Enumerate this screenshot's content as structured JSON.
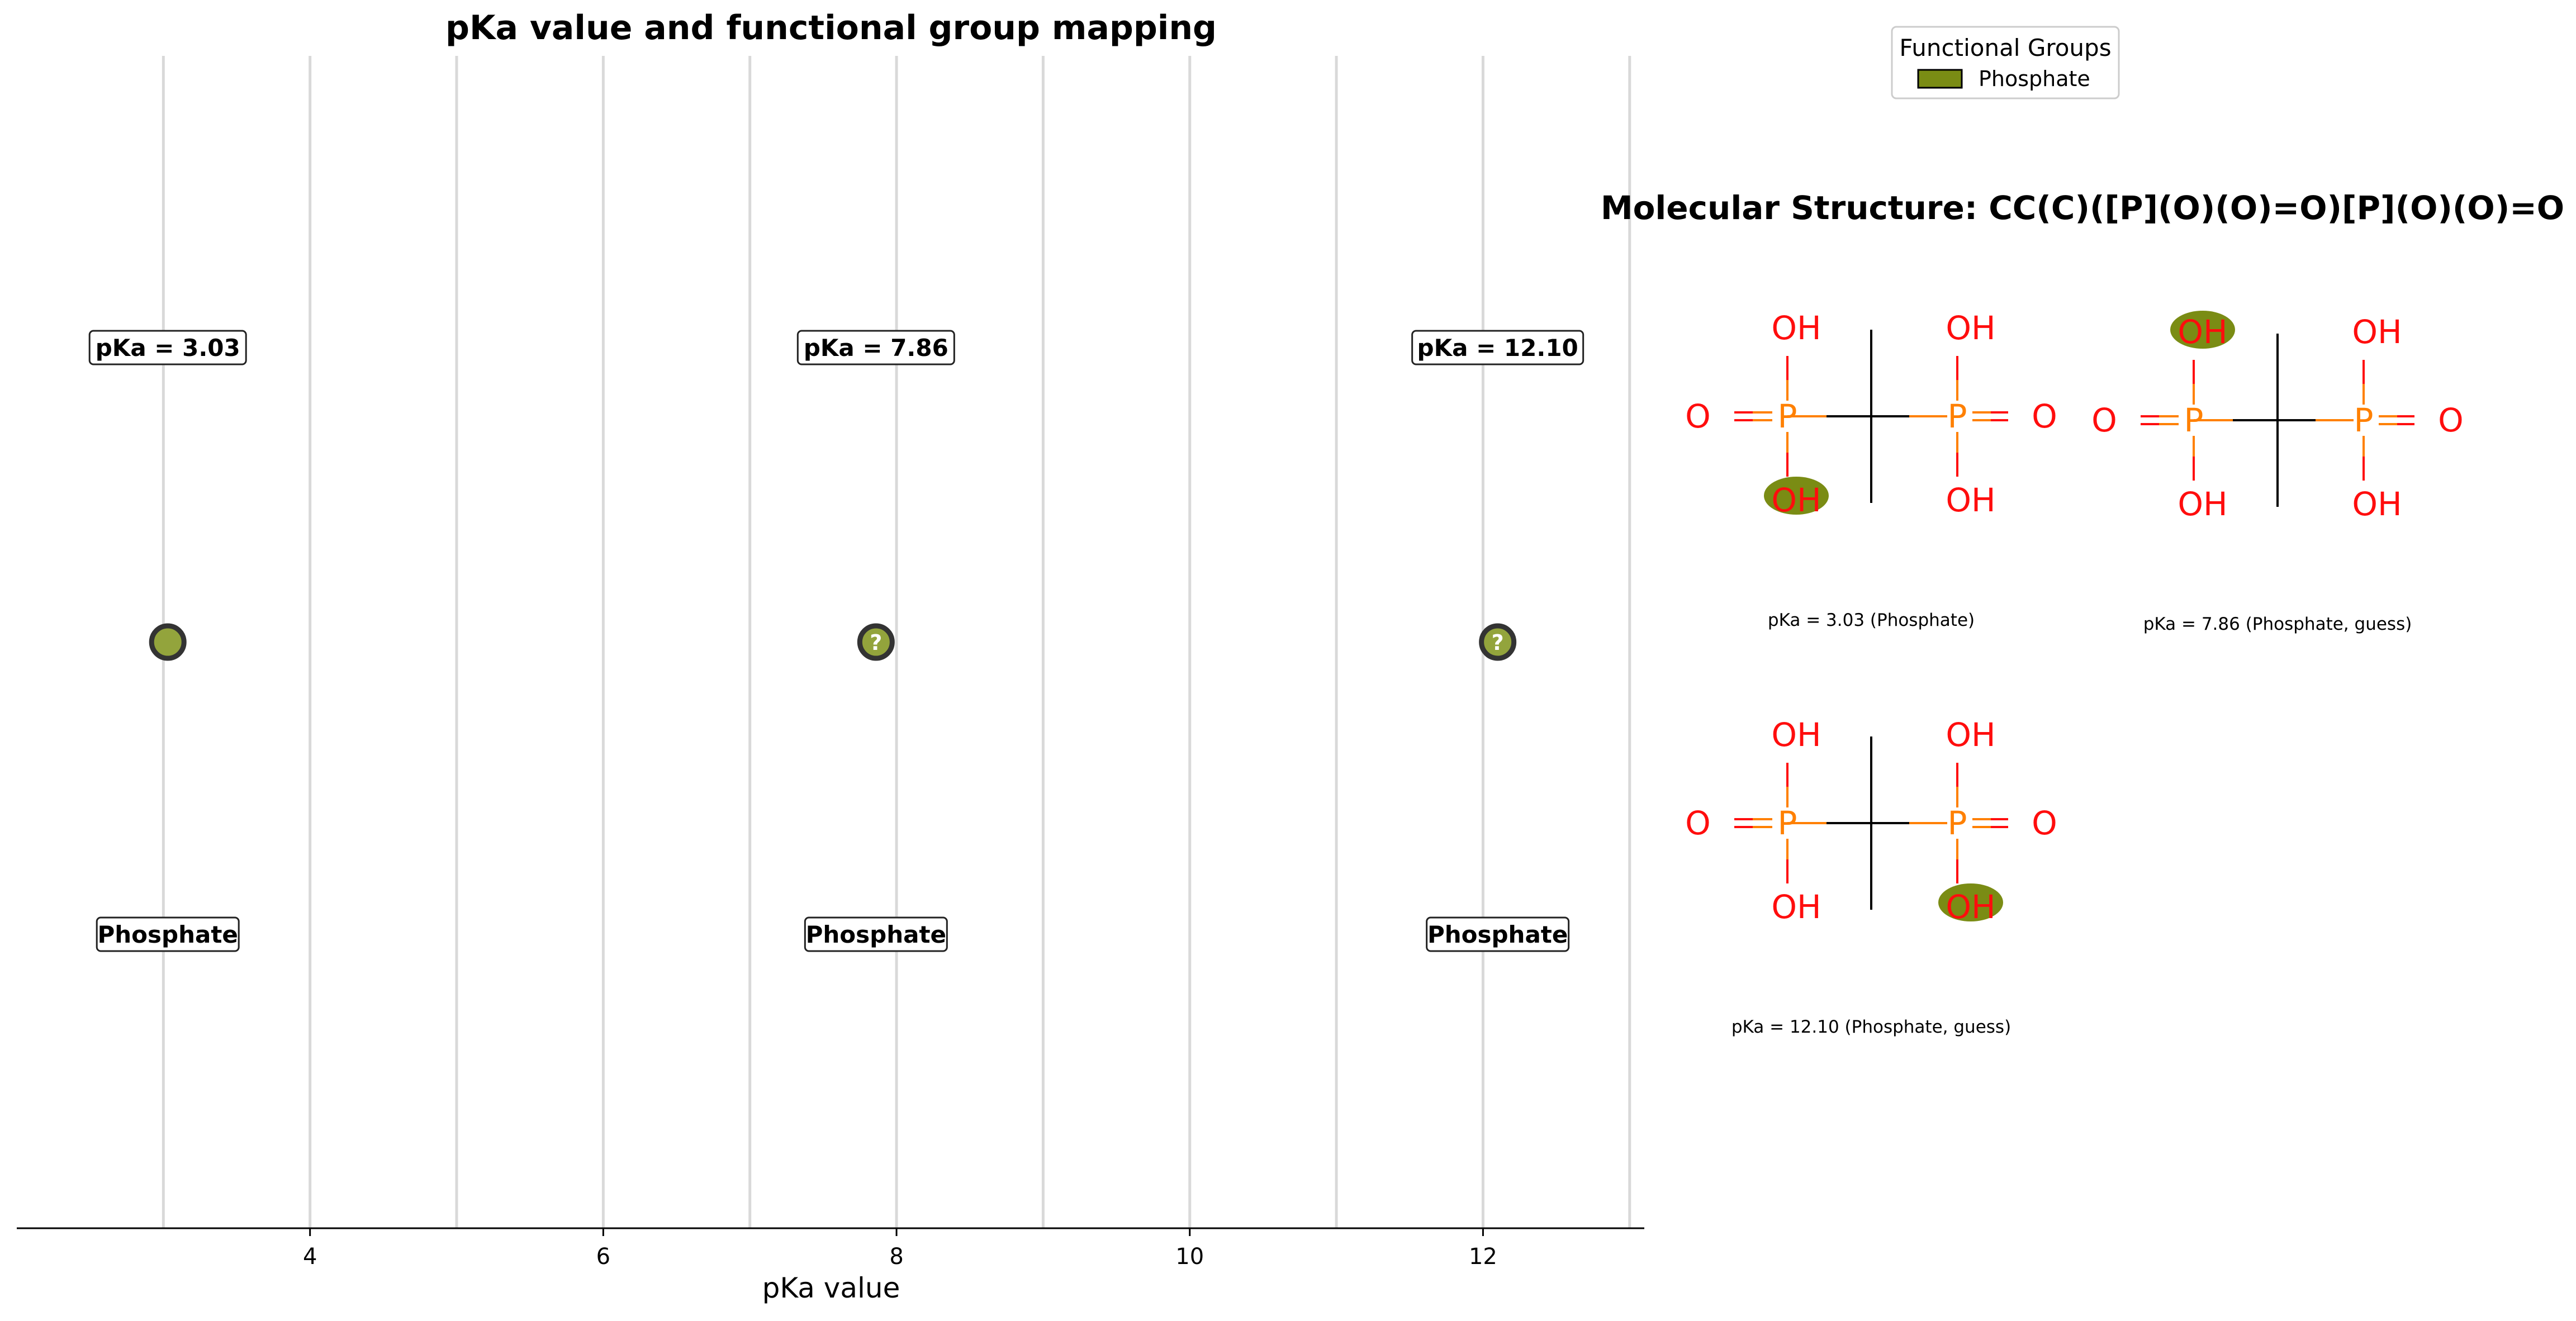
{
  "chart_data": [
    {
      "type": "scatter",
      "title": "pKa value and functional group mapping",
      "xlabel": "pKa value",
      "ylabel": "",
      "xlim": [
        2.0,
        13.1
      ],
      "xticks": [
        4,
        6,
        8,
        10,
        12
      ],
      "grid": "vertical lines at integer x",
      "points": [
        {
          "x": 3.03,
          "value_label": "pKa = 3.03",
          "group": "Phosphate",
          "guess": false
        },
        {
          "x": 7.86,
          "value_label": "pKa = 7.86",
          "group": "Phosphate",
          "guess": true,
          "marker_text": "?"
        },
        {
          "x": 12.1,
          "value_label": "pKa = 12.10",
          "group": "Phosphate",
          "guess": true,
          "marker_text": "?"
        }
      ],
      "legend": {
        "title": "Functional Groups",
        "placement": "top",
        "entries": [
          {
            "label": "Phosphate",
            "color": "#7a8c14"
          }
        ]
      }
    }
  ],
  "structure_panel": {
    "title": "Molecular Structure: CC(C)([P](O)(O)=O)[P](O)(O)=O",
    "molecules": [
      {
        "caption": "pKa = 3.03 (Phosphate)",
        "highlight": "left-bottom",
        "labels": {
          "oh_tl": "OH",
          "oh_bl": "OH",
          "oh_tr": "OH",
          "oh_br": "OH",
          "p_l": "P",
          "p_r": "P",
          "o_l": "O",
          "o_r": "O"
        }
      },
      {
        "caption": "pKa = 7.86 (Phosphate, guess)",
        "highlight": "left-top",
        "labels": {
          "oh_tl": "OH",
          "oh_bl": "OH",
          "oh_tr": "OH",
          "oh_br": "OH",
          "p_l": "P",
          "p_r": "P",
          "o_l": "O",
          "o_r": "O"
        }
      },
      {
        "caption": "pKa = 12.10 (Phosphate, guess)",
        "highlight": "right-bottom",
        "labels": {
          "oh_tl": "OH",
          "oh_bl": "OH",
          "oh_tr": "OH",
          "oh_br": "OH",
          "p_l": "P",
          "p_r": "P",
          "o_l": "O",
          "o_r": "O"
        }
      }
    ]
  },
  "colors": {
    "highlight": "#7a8c14",
    "marker_fill": "#93a43c",
    "marker_edge": "#333333",
    "grid": "#d9d9d9",
    "oxygen": "#ff0d0d",
    "phosphorus": "#ff8000",
    "bond": "#000000"
  }
}
